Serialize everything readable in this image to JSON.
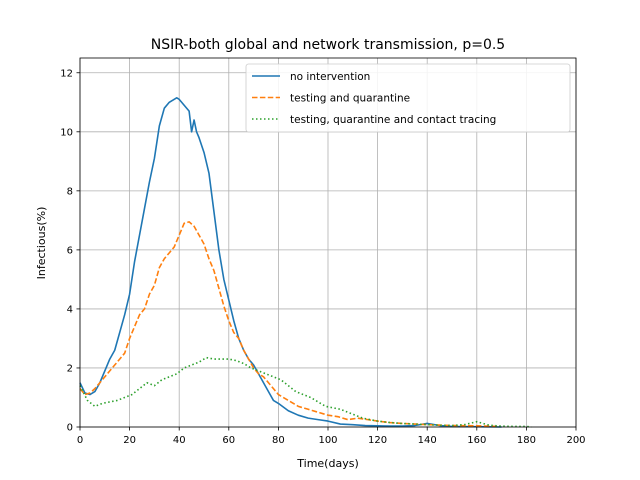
{
  "chart_data": {
    "type": "line",
    "title": "NSIR-both global and network transmission, p=0.5",
    "xlabel": "Time(days)",
    "ylabel": "Infectious(%)",
    "xlim": [
      0,
      200
    ],
    "ylim": [
      0,
      12.5
    ],
    "xticks": [
      0,
      20,
      40,
      60,
      80,
      100,
      120,
      140,
      160,
      180,
      200
    ],
    "yticks": [
      0,
      2,
      4,
      6,
      8,
      10,
      12
    ],
    "grid": true,
    "legend": "top-right",
    "series": [
      {
        "name": "no intervention",
        "color": "#1f77b4",
        "style": "solid",
        "x": [
          0,
          2,
          4,
          6,
          8,
          10,
          12,
          14,
          16,
          18,
          20,
          22,
          24,
          26,
          28,
          30,
          32,
          34,
          36,
          38,
          39,
          40,
          42,
          44,
          45,
          46,
          47,
          48,
          50,
          52,
          54,
          56,
          58,
          60,
          62,
          64,
          66,
          68,
          70,
          72,
          74,
          76,
          78,
          80,
          84,
          88,
          92,
          96,
          100,
          105,
          110,
          115,
          120,
          125,
          130,
          135,
          140,
          145,
          150,
          160,
          170
        ],
        "y": [
          1.5,
          1.15,
          1.1,
          1.2,
          1.5,
          1.9,
          2.3,
          2.6,
          3.2,
          3.8,
          4.5,
          5.6,
          6.5,
          7.4,
          8.3,
          9.1,
          10.2,
          10.8,
          11.0,
          11.1,
          11.15,
          11.1,
          10.9,
          10.7,
          10.0,
          10.4,
          10.0,
          9.8,
          9.3,
          8.6,
          7.3,
          6.0,
          5.0,
          4.3,
          3.6,
          3.0,
          2.6,
          2.3,
          2.1,
          1.8,
          1.5,
          1.2,
          0.9,
          0.8,
          0.55,
          0.4,
          0.3,
          0.25,
          0.2,
          0.1,
          0.08,
          0.05,
          0.04,
          0.03,
          0.03,
          0.05,
          0.12,
          0.05,
          0.02,
          0.01,
          0.0
        ]
      },
      {
        "name": "testing and quarantine",
        "color": "#ff7f0e",
        "style": "dashed",
        "x": [
          0,
          2,
          4,
          6,
          8,
          10,
          12,
          14,
          16,
          18,
          20,
          22,
          24,
          26,
          28,
          30,
          32,
          34,
          36,
          38,
          40,
          42,
          44,
          46,
          48,
          50,
          52,
          54,
          56,
          58,
          60,
          62,
          64,
          66,
          68,
          70,
          72,
          74,
          76,
          78,
          80,
          84,
          88,
          92,
          96,
          100,
          104,
          108,
          112,
          116,
          120,
          125,
          130,
          140,
          150,
          160,
          168
        ],
        "y": [
          1.3,
          1.1,
          1.15,
          1.3,
          1.5,
          1.7,
          1.9,
          2.1,
          2.3,
          2.5,
          3.0,
          3.4,
          3.8,
          4.0,
          4.5,
          4.8,
          5.4,
          5.7,
          5.9,
          6.1,
          6.5,
          6.9,
          6.95,
          6.8,
          6.5,
          6.2,
          5.7,
          5.3,
          4.7,
          4.1,
          3.6,
          3.2,
          3.0,
          2.6,
          2.3,
          2.0,
          1.8,
          1.7,
          1.5,
          1.3,
          1.1,
          0.9,
          0.7,
          0.6,
          0.5,
          0.4,
          0.35,
          0.25,
          0.3,
          0.25,
          0.2,
          0.15,
          0.12,
          0.08,
          0.05,
          0.04,
          0.02
        ]
      },
      {
        "name": "testing, quarantine and contact tracing",
        "color": "#2ca02c",
        "style": "dotted",
        "x": [
          0,
          3,
          6,
          9,
          12,
          15,
          18,
          21,
          24,
          27,
          30,
          33,
          36,
          39,
          42,
          45,
          48,
          51,
          54,
          57,
          60,
          63,
          66,
          69,
          72,
          75,
          78,
          81,
          84,
          87,
          90,
          93,
          96,
          99,
          102,
          105,
          108,
          111,
          114,
          117,
          120,
          125,
          130,
          135,
          140,
          145,
          150,
          155,
          160,
          165,
          170,
          175,
          180,
          182
        ],
        "y": [
          1.4,
          0.9,
          0.7,
          0.8,
          0.85,
          0.9,
          1.0,
          1.1,
          1.3,
          1.5,
          1.4,
          1.6,
          1.7,
          1.8,
          2.0,
          2.1,
          2.2,
          2.35,
          2.3,
          2.3,
          2.3,
          2.25,
          2.15,
          2.0,
          1.9,
          1.8,
          1.7,
          1.6,
          1.4,
          1.2,
          1.1,
          1.0,
          0.85,
          0.7,
          0.65,
          0.6,
          0.5,
          0.4,
          0.3,
          0.25,
          0.2,
          0.15,
          0.12,
          0.1,
          0.08,
          0.06,
          0.05,
          0.08,
          0.18,
          0.06,
          0.03,
          0.02,
          0.02,
          0.0
        ]
      }
    ]
  }
}
